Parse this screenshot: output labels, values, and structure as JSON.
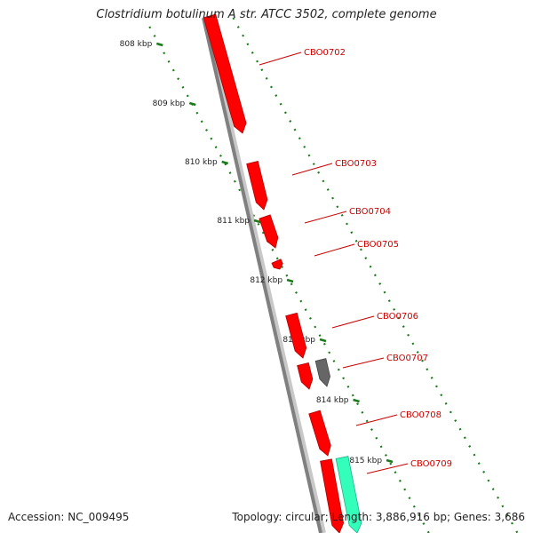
{
  "title": "Clostridium botulinum A str. ATCC 3502, complete genome",
  "accession_label": "Accession:",
  "accession": "NC_009495",
  "topology_label": "Topology:",
  "topology": "circular",
  "length_label": "Length:",
  "length": "3,886,916 bp",
  "genes_label": "Genes:",
  "genes": "3,686",
  "colors": {
    "backbone": "#808080",
    "forward_cds": "#ff0000",
    "other_feature": "#666666",
    "rna_feature": "#33ffbb",
    "scale_ticks": "#1a7a1a",
    "gene_labels": "#cc0000"
  },
  "scale_labels": [
    "808 kbp",
    "809 kbp",
    "810 kbp",
    "811 kbp",
    "812 kbp",
    "813 kbp",
    "814 kbp",
    "815 kbp"
  ],
  "gene_labels": [
    "CBO0702",
    "CBO0703",
    "CBO0704",
    "CBO0705",
    "CBO0706",
    "CBO0707",
    "CBO0708",
    "CBO0709"
  ]
}
